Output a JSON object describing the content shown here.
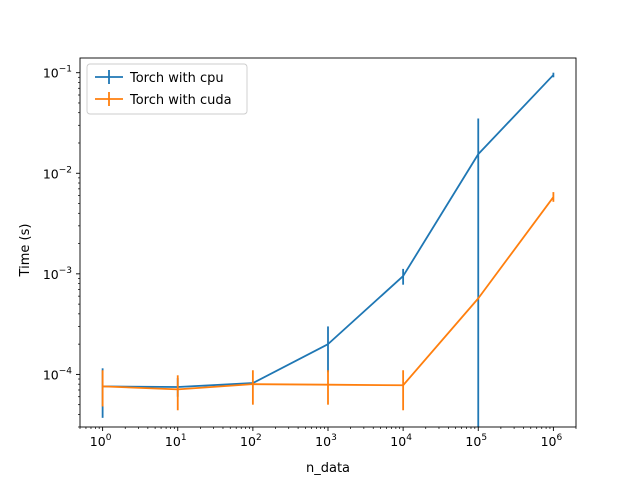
{
  "chart_data": {
    "type": "line",
    "xscale": "log",
    "yscale": "log",
    "x": [
      1,
      10,
      100,
      1000,
      10000,
      100000,
      1000000
    ],
    "xlim": [
      0.5,
      2000000
    ],
    "ylim": [
      3e-05,
      0.14
    ],
    "xlabel": "n_data",
    "ylabel": "Time (s)",
    "xticks": [
      {
        "value": 1,
        "base": "10",
        "exp": "0"
      },
      {
        "value": 10,
        "base": "10",
        "exp": "1"
      },
      {
        "value": 100,
        "base": "10",
        "exp": "2"
      },
      {
        "value": 1000,
        "base": "10",
        "exp": "3"
      },
      {
        "value": 10000,
        "base": "10",
        "exp": "4"
      },
      {
        "value": 100000,
        "base": "10",
        "exp": "5"
      },
      {
        "value": 1000000,
        "base": "10",
        "exp": "6"
      }
    ],
    "yticks": [
      {
        "value": 0.0001,
        "base": "10",
        "exp": "−4"
      },
      {
        "value": 0.001,
        "base": "10",
        "exp": "−3"
      },
      {
        "value": 0.01,
        "base": "10",
        "exp": "−2"
      },
      {
        "value": 0.1,
        "base": "10",
        "exp": "−1"
      }
    ],
    "legend_position": "top-left",
    "grid": false,
    "series": [
      {
        "name": "Torch with cpu",
        "color": "#1f77b4",
        "values": [
          7.6e-05,
          7.5e-05,
          8.2e-05,
          0.0002,
          0.00095,
          0.0155,
          0.095
        ],
        "err_low": [
          3.7e-05,
          6e-05,
          8e-05,
          0.000105,
          0.00078,
          3e-05,
          0.09
        ],
        "err_high": [
          0.000115,
          9.2e-05,
          8.5e-05,
          0.0003,
          0.00112,
          0.035,
          0.1
        ]
      },
      {
        "name": "Torch with cuda",
        "color": "#ff7f0e",
        "values": [
          7.6e-05,
          7.1e-05,
          8e-05,
          7.9e-05,
          7.8e-05,
          0.00057,
          0.0058
        ],
        "err_low": [
          4.8e-05,
          4.4e-05,
          5e-05,
          5e-05,
          4.4e-05,
          0.00057,
          0.0052
        ],
        "err_high": [
          0.00011,
          9.8e-05,
          0.00011,
          0.00011,
          0.00011,
          0.00057,
          0.0065
        ]
      }
    ]
  }
}
